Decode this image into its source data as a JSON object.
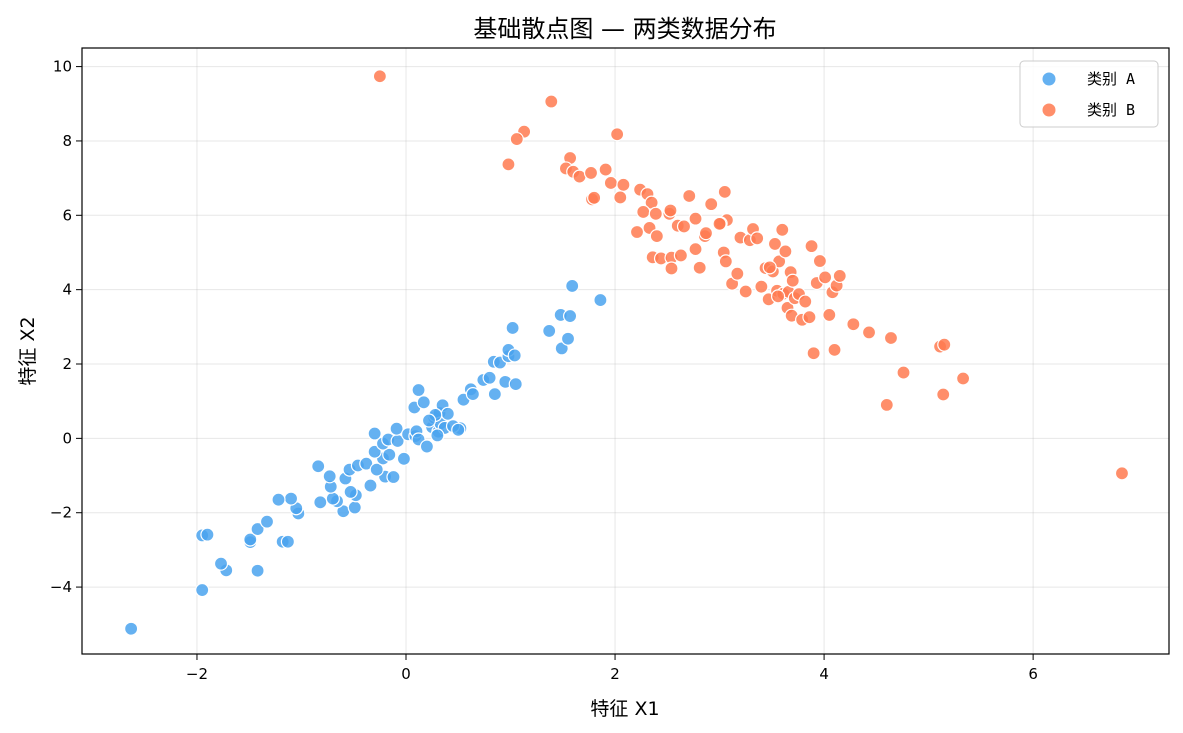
{
  "chart_data": {
    "type": "scatter",
    "title": "基础散点图 — 两类数据分布",
    "xlabel": "特征 X1",
    "ylabel": "特征 X2",
    "xlim": [
      -3.1,
      7.3
    ],
    "ylim": [
      -5.8,
      10.5
    ],
    "xticks": [
      -2,
      0,
      2,
      4,
      6
    ],
    "yticks": [
      -4,
      -2,
      0,
      2,
      4,
      6,
      8,
      10
    ],
    "grid": true,
    "legend_position": "top-right",
    "series": [
      {
        "name": "类别 A",
        "color": "#4aa3ee",
        "points": [
          [
            -2.63,
            -5.12
          ],
          [
            -1.95,
            -4.08
          ],
          [
            -1.42,
            -3.56
          ],
          [
            -1.72,
            -3.55
          ],
          [
            -1.77,
            -3.37
          ],
          [
            -1.49,
            -2.79
          ],
          [
            -1.49,
            -2.72
          ],
          [
            -1.18,
            -2.78
          ],
          [
            -1.13,
            -2.78
          ],
          [
            -1.95,
            -2.61
          ],
          [
            -1.9,
            -2.59
          ],
          [
            -1.42,
            -2.44
          ],
          [
            -1.33,
            -2.24
          ],
          [
            -1.03,
            -2.02
          ],
          [
            -1.05,
            -1.88
          ],
          [
            -1.1,
            -1.62
          ],
          [
            -1.22,
            -1.65
          ],
          [
            -0.6,
            -1.96
          ],
          [
            -0.82,
            -1.72
          ],
          [
            -0.66,
            -1.69
          ],
          [
            -0.7,
            -1.62
          ],
          [
            -0.49,
            -1.86
          ],
          [
            -0.48,
            -1.53
          ],
          [
            -0.53,
            -1.44
          ],
          [
            -0.34,
            -1.27
          ],
          [
            -0.2,
            -1.03
          ],
          [
            -0.12,
            -1.04
          ],
          [
            -0.72,
            -1.3
          ],
          [
            -0.73,
            -1.02
          ],
          [
            -0.58,
            -1.08
          ],
          [
            -0.54,
            -0.84
          ],
          [
            -0.46,
            -0.73
          ],
          [
            -0.38,
            -0.68
          ],
          [
            -0.28,
            -0.84
          ],
          [
            -0.22,
            -0.54
          ],
          [
            -0.16,
            -0.44
          ],
          [
            -0.84,
            -0.75
          ],
          [
            -0.3,
            -0.36
          ],
          [
            -0.22,
            -0.14
          ],
          [
            -0.17,
            -0.03
          ],
          [
            -0.08,
            -0.07
          ],
          [
            -0.09,
            0.26
          ],
          [
            -0.02,
            -0.55
          ],
          [
            0.02,
            0.11
          ],
          [
            0.09,
            0.06
          ],
          [
            0.1,
            0.19
          ],
          [
            0.12,
            -0.03
          ],
          [
            0.2,
            -0.22
          ],
          [
            0.25,
            0.3
          ],
          [
            0.27,
            0.56
          ],
          [
            0.31,
            0.18
          ],
          [
            0.32,
            0.68
          ],
          [
            0.33,
            0.4
          ],
          [
            0.35,
            0.89
          ],
          [
            0.37,
            0.28
          ],
          [
            0.4,
            0.66
          ],
          [
            0.08,
            0.83
          ],
          [
            0.12,
            1.3
          ],
          [
            0.17,
            0.97
          ],
          [
            0.28,
            0.63
          ],
          [
            0.3,
            0.08
          ],
          [
            0.52,
            0.27
          ],
          [
            0.55,
            1.04
          ],
          [
            0.62,
            1.32
          ],
          [
            0.64,
            1.19
          ],
          [
            0.74,
            1.57
          ],
          [
            0.8,
            1.63
          ],
          [
            0.84,
            2.06
          ],
          [
            0.85,
            1.19
          ],
          [
            0.9,
            2.04
          ],
          [
            0.95,
            1.52
          ],
          [
            0.98,
            2.21
          ],
          [
            0.98,
            2.38
          ],
          [
            1.02,
            2.97
          ],
          [
            1.04,
            2.23
          ],
          [
            1.05,
            1.46
          ],
          [
            1.37,
            2.89
          ],
          [
            1.48,
            3.32
          ],
          [
            1.49,
            2.42
          ],
          [
            1.55,
            2.68
          ],
          [
            1.57,
            3.29
          ],
          [
            1.59,
            4.1
          ],
          [
            1.86,
            3.72
          ],
          [
            -0.3,
            0.13
          ],
          [
            0.22,
            0.48
          ],
          [
            0.45,
            0.33
          ],
          [
            0.5,
            0.23
          ]
        ]
      },
      {
        "name": "类别 B",
        "color": "#ff7a50",
        "points": [
          [
            -0.25,
            9.74
          ],
          [
            1.39,
            9.06
          ],
          [
            1.13,
            8.25
          ],
          [
            1.06,
            8.05
          ],
          [
            0.98,
            7.37
          ],
          [
            2.02,
            8.18
          ],
          [
            1.57,
            7.54
          ],
          [
            1.53,
            7.26
          ],
          [
            1.6,
            7.17
          ],
          [
            1.66,
            7.04
          ],
          [
            1.77,
            7.14
          ],
          [
            1.91,
            7.23
          ],
          [
            1.96,
            6.87
          ],
          [
            2.08,
            6.82
          ],
          [
            1.78,
            6.43
          ],
          [
            1.8,
            6.47
          ],
          [
            2.05,
            6.48
          ],
          [
            2.24,
            6.69
          ],
          [
            2.31,
            6.57
          ],
          [
            2.35,
            6.34
          ],
          [
            2.27,
            6.09
          ],
          [
            2.39,
            6.04
          ],
          [
            2.52,
            6.04
          ],
          [
            2.53,
            6.13
          ],
          [
            2.6,
            5.72
          ],
          [
            2.66,
            5.7
          ],
          [
            2.71,
            6.52
          ],
          [
            2.77,
            5.91
          ],
          [
            2.92,
            6.3
          ],
          [
            3.05,
            6.63
          ],
          [
            3.07,
            5.87
          ],
          [
            3.01,
            5.78
          ],
          [
            2.21,
            5.55
          ],
          [
            2.33,
            5.66
          ],
          [
            2.4,
            5.44
          ],
          [
            2.36,
            4.87
          ],
          [
            2.44,
            4.84
          ],
          [
            2.54,
            4.86
          ],
          [
            2.54,
            4.57
          ],
          [
            2.63,
            4.92
          ],
          [
            2.77,
            5.09
          ],
          [
            2.81,
            4.59
          ],
          [
            2.86,
            5.44
          ],
          [
            2.87,
            5.52
          ],
          [
            3.0,
            5.77
          ],
          [
            3.04,
            5.0
          ],
          [
            3.06,
            4.76
          ],
          [
            3.12,
            4.16
          ],
          [
            3.17,
            4.43
          ],
          [
            3.2,
            5.4
          ],
          [
            3.25,
            3.95
          ],
          [
            3.29,
            5.33
          ],
          [
            3.32,
            5.63
          ],
          [
            3.36,
            5.38
          ],
          [
            3.4,
            4.08
          ],
          [
            3.44,
            4.58
          ],
          [
            3.47,
            3.74
          ],
          [
            3.51,
            4.49
          ],
          [
            3.53,
            5.23
          ],
          [
            3.55,
            3.97
          ],
          [
            3.57,
            4.76
          ],
          [
            3.6,
            5.61
          ],
          [
            3.61,
            3.89
          ],
          [
            3.63,
            5.03
          ],
          [
            3.65,
            3.51
          ],
          [
            3.66,
            3.94
          ],
          [
            3.68,
            4.47
          ],
          [
            3.69,
            3.3
          ],
          [
            3.72,
            3.77
          ],
          [
            3.76,
            3.88
          ],
          [
            3.79,
            3.19
          ],
          [
            3.82,
            3.68
          ],
          [
            3.86,
            3.26
          ],
          [
            3.88,
            5.17
          ],
          [
            3.93,
            4.18
          ],
          [
            3.96,
            4.77
          ],
          [
            4.01,
            4.33
          ],
          [
            4.05,
            3.32
          ],
          [
            4.08,
            3.93
          ],
          [
            4.12,
            4.11
          ],
          [
            4.15,
            4.37
          ],
          [
            3.9,
            2.29
          ],
          [
            4.1,
            2.38
          ],
          [
            4.28,
            3.07
          ],
          [
            4.43,
            2.85
          ],
          [
            4.64,
            2.7
          ],
          [
            4.76,
            1.77
          ],
          [
            4.6,
            0.9
          ],
          [
            5.11,
            2.47
          ],
          [
            5.15,
            2.52
          ],
          [
            5.14,
            1.18
          ],
          [
            5.33,
            1.61
          ],
          [
            6.85,
            -0.94
          ],
          [
            3.56,
            3.82
          ],
          [
            3.7,
            4.24
          ],
          [
            3.48,
            4.6
          ]
        ]
      }
    ]
  }
}
